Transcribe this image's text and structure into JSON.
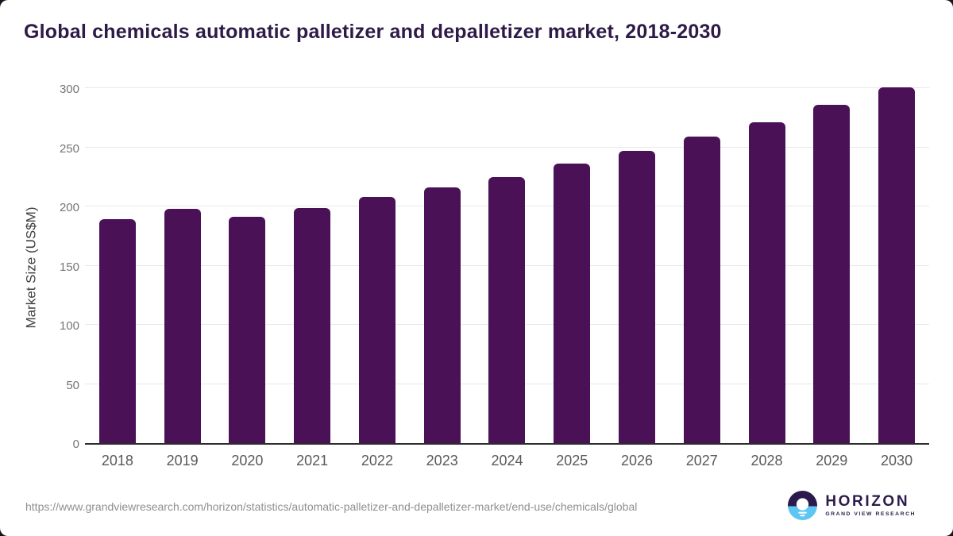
{
  "page": {
    "title": "Global chemicals automatic palletizer and depalletizer market, 2018-2030",
    "source_url": "https://www.grandviewresearch.com/horizon/statistics/automatic-palletizer-and-depalletizer-market/end-use/chemicals/global"
  },
  "branding": {
    "logo_name": "HORIZON",
    "logo_tagline": "GRAND VIEW RESEARCH",
    "logo_icon": "horizon-sunset-circle-icon"
  },
  "colors": {
    "bar": "#4a1157",
    "title_text": "#2e1a47",
    "logo_purple": "#2b1b4d",
    "logo_blue": "#5ec6f2",
    "axis_tick_text": "#757575",
    "x_tick_text": "#58595b",
    "ylabel_text": "#404040",
    "gridline": "#e8e8e8",
    "axis_line": "#2d2d2d",
    "url_text": "#8f8f8f",
    "page_background": "#17121f",
    "card_background": "#ffffff"
  },
  "chart_data": {
    "type": "bar",
    "title": "Global chemicals automatic palletizer and depalletizer market, 2018-2030",
    "categories": [
      "2018",
      "2019",
      "2020",
      "2021",
      "2022",
      "2023",
      "2024",
      "2025",
      "2026",
      "2027",
      "2028",
      "2029",
      "2030"
    ],
    "values": [
      189,
      198,
      191,
      199,
      208,
      216,
      225,
      236,
      247,
      259,
      271,
      286,
      301
    ],
    "xlabel": "",
    "ylabel": "Market Size (US$M)",
    "ylim": [
      0,
      300
    ],
    "yticks": [
      0,
      50,
      100,
      150,
      200,
      250,
      300
    ],
    "grid": true,
    "legend": false,
    "bar_color": "#4a1157"
  }
}
